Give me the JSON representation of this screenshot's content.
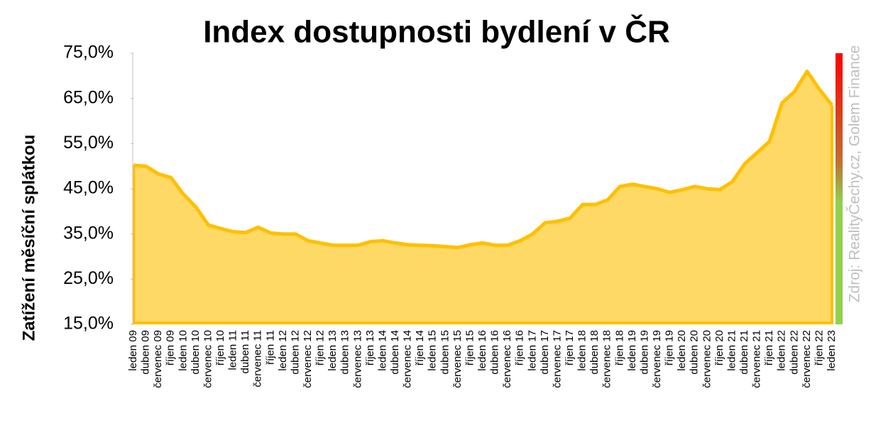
{
  "chart_data": {
    "type": "area",
    "title": "Index dostupnosti bydlení  v ČR",
    "y_label": "Zatížení měsíční splátkou",
    "source": "Zdroj: RealityČechy.cz, Golem Finance",
    "color": "#ffc000",
    "fill": "#ffd966",
    "ylim": [
      15,
      75
    ],
    "yticks": [
      {
        "value": 15,
        "label": "15,0%"
      },
      {
        "value": 25,
        "label": "25,0%"
      },
      {
        "value": 35,
        "label": "35,0%"
      },
      {
        "value": 45,
        "label": "45,0%"
      },
      {
        "value": 55,
        "label": "55,0%"
      },
      {
        "value": 65,
        "label": "65,0%"
      },
      {
        "value": 75,
        "label": "75,0%"
      }
    ],
    "categories": [
      "leden 09",
      "duben 09",
      "červenec 09",
      "říjen 09",
      "leden 10",
      "duben 10",
      "červenec 10",
      "říjen 10",
      "leden 11",
      "duben 11",
      "červenec 11",
      "říjen 11",
      "leden 12",
      "duben 12",
      "červenec 12",
      "říjen 12",
      "leden 13",
      "duben 13",
      "červenec 13",
      "říjen 13",
      "leden 14",
      "duben 14",
      "červenec 14",
      "říjen 14",
      "leden 15",
      "duben 15",
      "červenec 15",
      "říjen 15",
      "leden 16",
      "duben 16",
      "červenec 16",
      "říjen 16",
      "leden 17",
      "duben 17",
      "červenec 17",
      "říjen 17",
      "leden 18",
      "duben 18",
      "červenec 18",
      "říjen 18",
      "leden 19",
      "duben 19",
      "červenec 19",
      "říjen 19",
      "leden 20",
      "duben 20",
      "červenec 20",
      "říjen 20",
      "leden 21",
      "duben 21",
      "červenec 21",
      "říjen 21",
      "leden 22",
      "duben 22",
      "červenec 22",
      "říjen 22",
      "leden 23"
    ],
    "values": [
      50.2,
      50.0,
      48.3,
      47.5,
      43.8,
      41.0,
      37.0,
      36.2,
      35.5,
      35.3,
      36.5,
      35.2,
      35.0,
      35.0,
      33.5,
      33.0,
      32.5,
      32.5,
      32.5,
      33.3,
      33.5,
      33.0,
      32.6,
      32.5,
      32.4,
      32.2,
      32.0,
      32.6,
      33.0,
      32.5,
      32.5,
      33.5,
      35.0,
      37.5,
      37.8,
      38.5,
      41.5,
      41.5,
      42.5,
      45.5,
      46.0,
      45.5,
      45.0,
      44.2,
      44.8,
      45.5,
      45.0,
      44.8,
      46.5,
      50.5,
      53.0,
      55.5,
      64.0,
      66.5,
      71.0,
      67.0,
      63.5
    ]
  }
}
